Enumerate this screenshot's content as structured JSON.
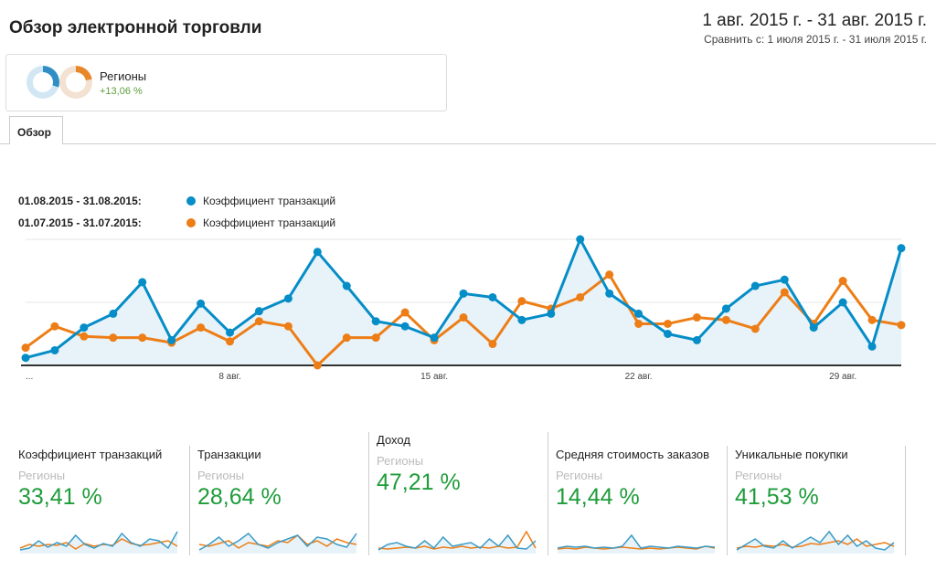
{
  "header": {
    "title": "Обзор электронной торговли",
    "date_range": "1 авг. 2015 г. - 31 авг. 2015 г.",
    "compare": "Сравнить с: 1 июля 2015 г. - 31 июля 2015 г."
  },
  "segment": {
    "name": "Регионы",
    "change": "+13,06 %"
  },
  "tabs": [
    {
      "label": "Обзор"
    }
  ],
  "legend": [
    {
      "date": "01.08.2015 - 31.08.2015:",
      "metric": "Коэффициент транзакций",
      "color": "#058dc7"
    },
    {
      "date": "01.07.2015 - 31.07.2015:",
      "metric": "Коэффициент транзакций",
      "color": "#ed7e17"
    }
  ],
  "chart_data": {
    "type": "line",
    "title": "",
    "xlabel": "",
    "ylabel": "",
    "ylim": [
      0,
      100
    ],
    "grid": true,
    "x_ticks": [
      {
        "index": 0,
        "label": "..."
      },
      {
        "index": 7,
        "label": "8 авг."
      },
      {
        "index": 14,
        "label": "15 авг."
      },
      {
        "index": 21,
        "label": "22 авг."
      },
      {
        "index": 28,
        "label": "29 авг."
      }
    ],
    "series": [
      {
        "name": "01.08.2015 - 31.08.2015: Коэффициент транзакций",
        "color": "#058dc7",
        "values": [
          6,
          12,
          30,
          41,
          66,
          20,
          49,
          26,
          43,
          53,
          90,
          63,
          35,
          31,
          22,
          57,
          54,
          36,
          41,
          100,
          57,
          41,
          25,
          20,
          45,
          63,
          68,
          30,
          50,
          15,
          93
        ]
      },
      {
        "name": "01.07.2015 - 31.07.2015: Коэффициент транзакций",
        "color": "#ed7e17",
        "values": [
          14,
          31,
          23,
          22,
          22,
          18,
          30,
          19,
          35,
          31,
          0,
          22,
          22,
          42,
          20,
          38,
          17,
          51,
          45,
          54,
          72,
          33,
          33,
          38,
          36,
          29,
          58,
          33,
          67,
          36,
          32
        ]
      }
    ]
  },
  "cards": [
    {
      "title": "Коэффициент транзакций",
      "segment": "Регионы",
      "value": "33,41 %",
      "spark_a": [
        2,
        4,
        12,
        5,
        10,
        6,
        18,
        8,
        4,
        9,
        6,
        20,
        10,
        6,
        14,
        12,
        4,
        22
      ],
      "spark_b": [
        4,
        8,
        6,
        8,
        7,
        10,
        3,
        9,
        6,
        8,
        7,
        14,
        9,
        7,
        8,
        10,
        12,
        6
      ]
    },
    {
      "title": "Транзакции",
      "segment": "Регионы",
      "value": "28,64 %",
      "spark_a": [
        2,
        8,
        16,
        6,
        12,
        20,
        8,
        4,
        10,
        14,
        18,
        6,
        16,
        14,
        8,
        5,
        20
      ],
      "spark_b": [
        8,
        6,
        9,
        12,
        4,
        10,
        8,
        6,
        12,
        10,
        18,
        8,
        12,
        6,
        14,
        10,
        8
      ]
    },
    {
      "title": "Доход",
      "segment": "Регионы",
      "value": "47,21 %",
      "spark_a": [
        2,
        8,
        10,
        6,
        4,
        12,
        4,
        16,
        6,
        8,
        10,
        4,
        14,
        6,
        18,
        4,
        3,
        12
      ],
      "spark_b": [
        4,
        3,
        4,
        5,
        4,
        6,
        3,
        5,
        4,
        6,
        4,
        5,
        4,
        6,
        4,
        5,
        22,
        4
      ]
    },
    {
      "title": "Средняя стоимость заказов",
      "segment": "Регионы",
      "value": "14,44 %",
      "spark_a": [
        4,
        6,
        5,
        6,
        4,
        5,
        4,
        6,
        18,
        4,
        6,
        5,
        4,
        6,
        5,
        4,
        6,
        5
      ],
      "spark_b": [
        3,
        4,
        3,
        5,
        4,
        3,
        4,
        5,
        4,
        3,
        4,
        3,
        4,
        5,
        4,
        3,
        6,
        4
      ]
    },
    {
      "title": "Уникальные покупки",
      "segment": "Регионы",
      "value": "41,53 %",
      "spark_a": [
        2,
        8,
        14,
        6,
        4,
        12,
        4,
        10,
        16,
        10,
        22,
        8,
        18,
        6,
        12,
        4,
        2,
        10
      ],
      "spark_b": [
        4,
        6,
        5,
        7,
        6,
        8,
        5,
        6,
        9,
        8,
        10,
        12,
        8,
        14,
        6,
        8,
        10,
        6
      ]
    }
  ]
}
